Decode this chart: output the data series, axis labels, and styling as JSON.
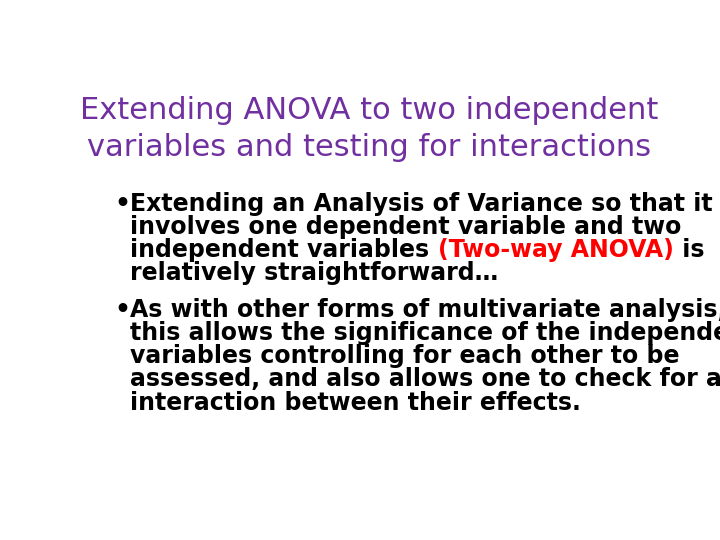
{
  "background_color": "#ffffff",
  "title_line1": "Extending ANOVA to two independent",
  "title_line2": "variables and testing for interactions",
  "title_color": "#7030A0",
  "title_fontsize": 22,
  "title_fontweight": "normal",
  "bullet_fontsize": 17,
  "bullet_fontweight": "bold",
  "bullet_color": "#000000",
  "bullet1_line1": "Extending an Analysis of Variance so that it",
  "bullet1_line2": "involves one dependent variable and two",
  "bullet1_line3_pre": "independent variables ",
  "bullet1_line3_red": "(Two-way ANOVA)",
  "bullet1_line3_post": " is",
  "bullet1_line4": "relatively straightforward…",
  "bullet2_lines": [
    "As with other forms of multivariate analysis,",
    "this allows the significance of the independent",
    "variables controlling for each other to be",
    "assessed, and also allows one to check for an",
    "interaction between their effects."
  ],
  "red_color": "#FF0000"
}
